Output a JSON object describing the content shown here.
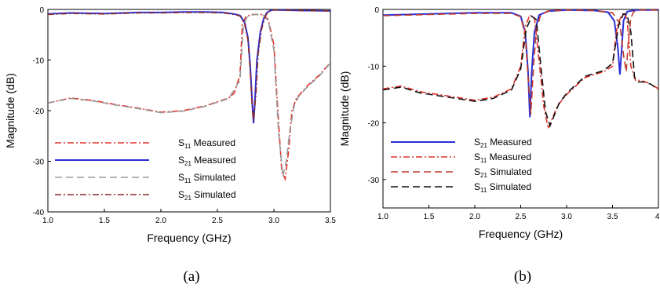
{
  "chart_data": [
    {
      "type": "line",
      "panel_caption": "(a)",
      "xlabel": "Frequency (GHz)",
      "ylabel": "Magnitude (dB)",
      "xlim": [
        1.0,
        3.5
      ],
      "ylim": [
        -40,
        0
      ],
      "xticks": [
        "1.0",
        "1.5",
        "2.0",
        "2.5",
        "3.0",
        "3.5"
      ],
      "yticks": [
        "0",
        "-10",
        "-20",
        "-30",
        "-40"
      ],
      "grid": false,
      "legend_position": "bottom-center",
      "legend": [
        {
          "sub_base": "S",
          "sub": "11",
          "rest": " Measured",
          "color": "#e0302a",
          "dash": "dashdot"
        },
        {
          "sub_base": "S",
          "sub": "21",
          "rest": " Measured",
          "color": "#2b2fd6",
          "dash": "solid"
        },
        {
          "sub_base": "S",
          "sub": "11",
          "rest": " Simulated",
          "color": "#9a9a9a",
          "dash": "dash"
        },
        {
          "sub_base": "S",
          "sub": "21",
          "rest": " Simulated",
          "color": "#8b2a2a",
          "dash": "dashdot"
        }
      ],
      "series": [
        {
          "name": "S11 Measured",
          "color": "#e0302a",
          "dash": "dashdot",
          "x": [
            1.0,
            1.2,
            1.4,
            1.6,
            1.8,
            2.0,
            2.2,
            2.4,
            2.6,
            2.65,
            2.7,
            2.72,
            2.75,
            2.8,
            2.85,
            2.9,
            2.95,
            3.0,
            3.04,
            3.07,
            3.1,
            3.13,
            3.16,
            3.2,
            3.3,
            3.4,
            3.5
          ],
          "y": [
            -18.5,
            -17.5,
            -18.0,
            -18.8,
            -19.5,
            -20.3,
            -20.0,
            -19.0,
            -17.5,
            -16.5,
            -13.0,
            -3.0,
            -1.5,
            -1.0,
            -1.0,
            -1.0,
            -2.0,
            -7.0,
            -22.0,
            -32.0,
            -33.5,
            -28.0,
            -20.0,
            -17.5,
            -15.0,
            -13.0,
            -10.5
          ]
        },
        {
          "name": "S21 Measured",
          "color": "#2b2fd6",
          "dash": "solid",
          "x": [
            1.0,
            1.2,
            1.5,
            1.8,
            2.0,
            2.2,
            2.4,
            2.55,
            2.65,
            2.7,
            2.74,
            2.77,
            2.79,
            2.81,
            2.82,
            2.83,
            2.85,
            2.88,
            2.91,
            2.94,
            2.97,
            3.0,
            3.2,
            3.5
          ],
          "y": [
            -0.9,
            -0.7,
            -0.8,
            -0.6,
            -0.6,
            -0.5,
            -0.5,
            -0.6,
            -0.9,
            -1.2,
            -2.5,
            -5.5,
            -11.0,
            -19.0,
            -22.5,
            -19.0,
            -10.0,
            -4.5,
            -1.8,
            -0.6,
            -0.2,
            -0.1,
            -0.2,
            -0.3
          ]
        },
        {
          "name": "S11 Simulated",
          "color": "#9a9a9a",
          "dash": "dash",
          "x": [
            1.0,
            1.2,
            1.4,
            1.6,
            1.8,
            2.0,
            2.2,
            2.4,
            2.6,
            2.7,
            2.73,
            2.76,
            2.8,
            2.85,
            2.9,
            2.95,
            3.0,
            3.04,
            3.08,
            3.11,
            3.14,
            3.18,
            3.22,
            3.3,
            3.4,
            3.5
          ],
          "y": [
            -18.5,
            -17.6,
            -18.1,
            -18.9,
            -19.6,
            -20.4,
            -20.1,
            -19.1,
            -17.6,
            -14.0,
            -3.5,
            -1.6,
            -1.1,
            -1.0,
            -1.1,
            -2.2,
            -8.0,
            -24.0,
            -33.0,
            -30.0,
            -24.0,
            -19.0,
            -17.2,
            -15.2,
            -13.2,
            -10.6
          ]
        },
        {
          "name": "S21 Simulated",
          "color": "#8b2a2a",
          "dash": "dashdot",
          "x": [
            1.0,
            1.2,
            1.5,
            1.8,
            2.0,
            2.2,
            2.4,
            2.55,
            2.65,
            2.7,
            2.74,
            2.77,
            2.79,
            2.81,
            2.82,
            2.84,
            2.86,
            2.89,
            2.92,
            2.95,
            2.98,
            3.0,
            3.2,
            3.5
          ],
          "y": [
            -1.0,
            -0.8,
            -0.9,
            -0.7,
            -0.7,
            -0.6,
            -0.6,
            -0.7,
            -1.0,
            -1.3,
            -2.8,
            -6.0,
            -12.0,
            -20.0,
            -22.0,
            -17.0,
            -9.0,
            -4.0,
            -1.5,
            -0.5,
            -0.2,
            -0.1,
            -0.2,
            -0.3
          ]
        }
      ]
    },
    {
      "type": "line",
      "panel_caption": "(b)",
      "xlabel": "Frequency (GHz)",
      "ylabel": "Magnitude (dB)",
      "xlim": [
        1.0,
        4.0
      ],
      "ylim": [
        -35,
        0
      ],
      "xticks": [
        "1.0",
        "1.5",
        "2.0",
        "2.5",
        "3.0",
        "3.5",
        "4."
      ],
      "yticks": [
        "0",
        "-10",
        "-20",
        "-30"
      ],
      "grid": false,
      "legend_position": "bottom-center",
      "legend": [
        {
          "sub_base": "S",
          "sub": "21",
          "rest": " Measured",
          "color": "#2b2fd6",
          "dash": "solid"
        },
        {
          "sub_base": "S",
          "sub": "11",
          "rest": " Measured",
          "color": "#e0302a",
          "dash": "dashdot"
        },
        {
          "sub_base": "S",
          "sub": "21",
          "rest": " Simulated",
          "color": "#c0392b",
          "dash": "dash"
        },
        {
          "sub_base": "S",
          "sub": "11",
          "rest": " Simulated",
          "color": "#111111",
          "dash": "dash"
        }
      ],
      "series": [
        {
          "name": "S21 Measured",
          "color": "#2b2fd6",
          "dash": "solid",
          "x": [
            1.0,
            1.5,
            2.0,
            2.4,
            2.5,
            2.55,
            2.58,
            2.6,
            2.62,
            2.65,
            2.7,
            2.8,
            3.0,
            3.3,
            3.45,
            3.52,
            3.56,
            3.58,
            3.6,
            3.62,
            3.66,
            3.75,
            4.0
          ],
          "y": [
            -1.0,
            -0.8,
            -0.6,
            -0.6,
            -1.2,
            -4.0,
            -11.0,
            -19.0,
            -11.0,
            -4.0,
            -1.0,
            -0.3,
            -0.1,
            -0.2,
            -0.5,
            -2.0,
            -7.0,
            -11.5,
            -7.0,
            -2.0,
            -0.4,
            -0.1,
            -0.1
          ]
        },
        {
          "name": "S11 Measured",
          "color": "#e0302a",
          "dash": "dashdot",
          "x": [
            1.0,
            1.2,
            1.4,
            1.6,
            1.8,
            2.0,
            2.2,
            2.4,
            2.5,
            2.55,
            2.6,
            2.65,
            2.7,
            2.75,
            2.8,
            2.85,
            2.9,
            3.0,
            3.1,
            3.2,
            3.3,
            3.4,
            3.5,
            3.55,
            3.6,
            3.63,
            3.66,
            3.7,
            3.75,
            3.8,
            3.9,
            4.0
          ],
          "y": [
            -14.0,
            -13.5,
            -14.5,
            -15.0,
            -15.5,
            -16.0,
            -15.5,
            -14.0,
            -10.0,
            -3.0,
            -1.0,
            -1.5,
            -9.0,
            -17.0,
            -21.0,
            -19.0,
            -17.0,
            -15.0,
            -13.5,
            -12.0,
            -11.5,
            -11.0,
            -10.0,
            -3.0,
            -1.0,
            -0.5,
            -2.0,
            -10.0,
            -12.5,
            -12.5,
            -13.0,
            -14.0
          ]
        },
        {
          "name": "S21 Simulated",
          "color": "#c0392b",
          "dash": "dash",
          "x": [
            1.0,
            1.5,
            2.0,
            2.4,
            2.5,
            2.55,
            2.58,
            2.61,
            2.64,
            2.67,
            2.72,
            2.8,
            3.0,
            3.3,
            3.5,
            3.58,
            3.62,
            3.65,
            3.67,
            3.7,
            3.73,
            3.8,
            4.0
          ],
          "y": [
            -1.1,
            -0.9,
            -0.7,
            -0.7,
            -1.3,
            -4.5,
            -12.0,
            -18.5,
            -10.0,
            -3.5,
            -0.9,
            -0.3,
            -0.1,
            -0.2,
            -0.6,
            -2.5,
            -8.0,
            -11.0,
            -6.0,
            -1.5,
            -0.4,
            -0.1,
            -0.1
          ]
        },
        {
          "name": "S11 Simulated",
          "color": "#111111",
          "dash": "dash",
          "x": [
            1.0,
            1.2,
            1.4,
            1.6,
            1.8,
            2.0,
            2.2,
            2.4,
            2.5,
            2.56,
            2.62,
            2.67,
            2.72,
            2.77,
            2.82,
            2.87,
            2.92,
            3.0,
            3.1,
            3.2,
            3.3,
            3.4,
            3.5,
            3.57,
            3.62,
            3.66,
            3.7,
            3.74,
            3.78,
            3.85,
            3.92,
            4.0
          ],
          "y": [
            -14.2,
            -13.7,
            -14.7,
            -15.2,
            -15.7,
            -16.2,
            -15.7,
            -14.2,
            -10.5,
            -3.5,
            -1.2,
            -1.8,
            -10.0,
            -18.0,
            -20.5,
            -18.5,
            -16.5,
            -14.8,
            -13.3,
            -11.8,
            -11.3,
            -10.8,
            -9.5,
            -2.5,
            -0.8,
            -1.0,
            -4.0,
            -12.0,
            -12.8,
            -12.8,
            -13.2,
            -14.2
          ]
        }
      ]
    }
  ]
}
